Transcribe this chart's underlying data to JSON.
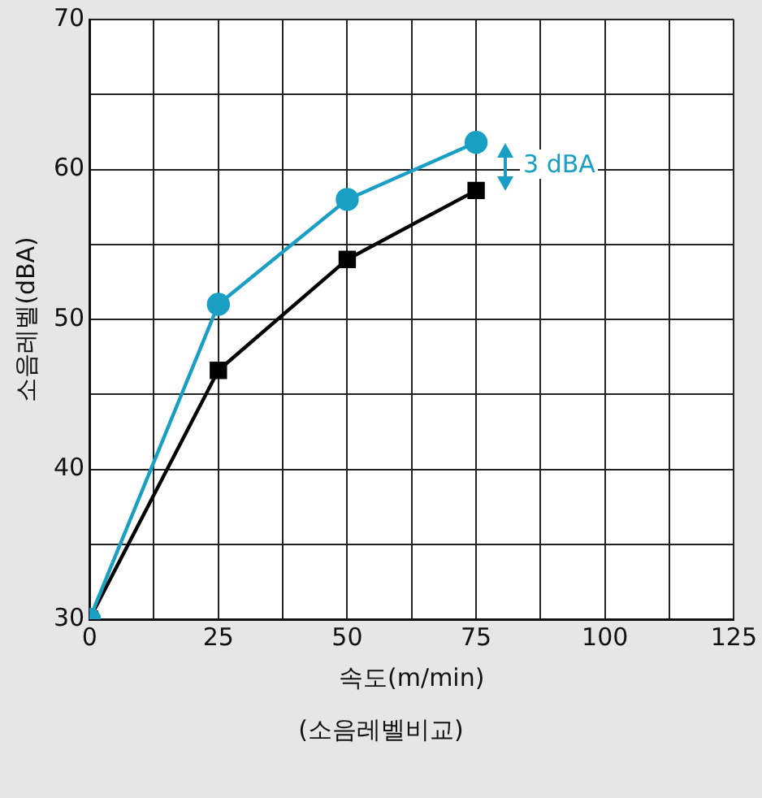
{
  "chart_data": {
    "type": "line",
    "xlabel": "속도(m/min)",
    "ylabel": "소음레벨(dBA)",
    "x": [
      0,
      25,
      50,
      75
    ],
    "series": [
      {
        "color": "#1a9fc4",
        "values": [
          30,
          51,
          58,
          61.8
        ],
        "marker": "circle"
      },
      {
        "color": "#000000",
        "values": [
          30,
          46.6,
          54,
          58.6
        ],
        "marker": "square"
      }
    ],
    "xlim": [
      0,
      125
    ],
    "xticks": [
      0,
      {
        "value": 12.5,
        "label": null
      },
      25,
      {
        "value": 37.5,
        "label": null
      },
      50,
      {
        "value": 62.5,
        "label": null
      },
      75,
      {
        "value": 87.5,
        "label": null
      },
      100,
      {
        "value": 112.5,
        "label": null
      },
      125
    ],
    "ylim": [
      30,
      70
    ],
    "yticks": [
      30,
      {
        "value": 35,
        "label": null
      },
      40,
      {
        "value": 45,
        "label": null
      },
      50,
      {
        "value": 55,
        "label": null
      },
      60,
      {
        "value": 65,
        "label": null
      },
      70
    ],
    "grid": true,
    "legend": false,
    "annotations": [
      "3 dBA",
      "(소음레벨비교)"
    ]
  }
}
